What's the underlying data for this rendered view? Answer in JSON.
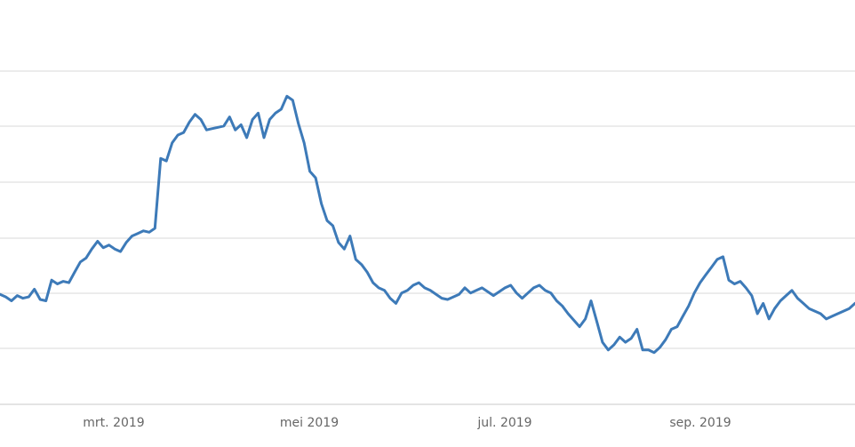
{
  "chart_data": {
    "type": "line",
    "title": "",
    "xlabel": "",
    "ylabel": "",
    "x_tick_labels": [
      "mrt. 2019",
      "mei 2019",
      "jul. 2019",
      "sep. 2019"
    ],
    "y_gridlines": 7,
    "grid": true,
    "legend": "none",
    "colors": {
      "line": "#3d7ab8",
      "grid": "#d9d9d9",
      "tick_text": "#666666"
    },
    "series": [
      {
        "values": [
          3.65,
          3.63,
          3.6,
          3.64,
          3.62,
          3.63,
          3.69,
          3.61,
          3.6,
          3.76,
          3.73,
          3.75,
          3.74,
          3.82,
          3.9,
          3.93,
          4.0,
          4.06,
          4.01,
          4.03,
          4.0,
          3.98,
          4.05,
          4.1,
          4.12,
          4.14,
          4.13,
          4.16,
          4.7,
          4.68,
          4.82,
          4.88,
          4.9,
          4.98,
          5.04,
          5.0,
          4.92,
          4.93,
          4.94,
          4.95,
          5.02,
          4.92,
          4.96,
          4.86,
          5.0,
          5.05,
          4.86,
          5.0,
          5.05,
          5.08,
          5.18,
          5.15,
          4.97,
          4.82,
          4.6,
          4.55,
          4.35,
          4.22,
          4.18,
          4.05,
          4.0,
          4.1,
          3.92,
          3.88,
          3.82,
          3.74,
          3.7,
          3.68,
          3.62,
          3.58,
          3.66,
          3.68,
          3.72,
          3.74,
          3.7,
          3.68,
          3.65,
          3.62,
          3.61,
          3.63,
          3.65,
          3.7,
          3.66,
          3.68,
          3.7,
          3.67,
          3.64,
          3.67,
          3.7,
          3.72,
          3.66,
          3.62,
          3.66,
          3.7,
          3.72,
          3.68,
          3.66,
          3.6,
          3.56,
          3.5,
          3.45,
          3.4,
          3.46,
          3.6,
          3.44,
          3.28,
          3.22,
          3.26,
          3.32,
          3.28,
          3.31,
          3.38,
          3.22,
          3.22,
          3.2,
          3.24,
          3.3,
          3.38,
          3.4,
          3.48,
          3.56,
          3.66,
          3.74,
          3.8,
          3.86,
          3.92,
          3.94,
          3.76,
          3.73,
          3.75,
          3.7,
          3.64,
          3.5,
          3.58,
          3.46,
          3.54,
          3.6,
          3.64,
          3.68,
          3.62,
          3.58,
          3.54,
          3.52,
          3.5,
          3.46,
          3.48,
          3.5,
          3.52,
          3.54,
          3.58
        ]
      }
    ]
  }
}
